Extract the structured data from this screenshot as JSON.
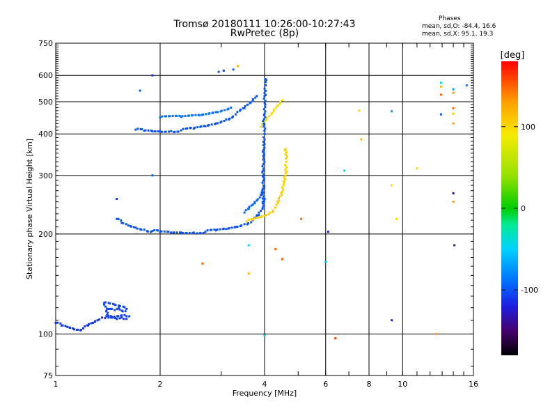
{
  "header": {
    "title": "Tromsø 20180111 10:26:00-10:27:43",
    "subtitle": "RwPretec (8p)",
    "stats_title": "Phases",
    "stats_o": "mean, sd,O: -84.4, 16.6",
    "stats_x": "mean, sd,X:  95.1, 19.3"
  },
  "colorbar": {
    "unit": "[deg]",
    "range": [
      -180,
      180
    ],
    "ticks": [
      {
        "value": 100,
        "label": "100"
      },
      {
        "value": 0,
        "label": "0"
      },
      {
        "value": -100,
        "label": "-100"
      }
    ]
  },
  "chart_data": {
    "type": "scatter",
    "title": "Tromsø 20180111 10:26:00-10:27:43",
    "subtitle": "RwPretec (8p)",
    "xlabel": "Frequency [MHz]",
    "ylabel": "Stationary phase Virtual Height [km]",
    "x_scale": "log",
    "y_scale": "log",
    "xlim": [
      1,
      16
    ],
    "ylim": [
      75,
      750
    ],
    "grid": true,
    "x_ticks": [
      {
        "value": 1,
        "label": "1",
        "grid": false
      },
      {
        "value": 2,
        "label": "2",
        "grid": true
      },
      {
        "value": 4,
        "label": "4",
        "grid": true
      },
      {
        "value": 6,
        "label": "6",
        "grid": true
      },
      {
        "value": 8,
        "label": "8",
        "grid": true
      },
      {
        "value": 10,
        "label": "10",
        "grid": true
      },
      {
        "value": 16,
        "label": "16",
        "grid": false
      }
    ],
    "y_ticks": [
      {
        "value": 75,
        "label": "75",
        "grid": false
      },
      {
        "value": 100,
        "label": "100",
        "grid": true
      },
      {
        "value": 200,
        "label": "200",
        "grid": true
      },
      {
        "value": 300,
        "label": "300",
        "grid": true
      },
      {
        "value": 400,
        "label": "400",
        "grid": true
      },
      {
        "value": 500,
        "label": "500",
        "grid": true
      },
      {
        "value": 600,
        "label": "600",
        "grid": true
      },
      {
        "value": 750,
        "label": "750",
        "grid": false
      }
    ],
    "traces": [
      {
        "id": "E-trace",
        "phase": -110,
        "points": [
          [
            1.0,
            108
          ],
          [
            1.04,
            106
          ],
          [
            1.08,
            105
          ],
          [
            1.12,
            104
          ],
          [
            1.16,
            103
          ],
          [
            1.2,
            104
          ],
          [
            1.24,
            106
          ],
          [
            1.28,
            108
          ],
          [
            1.32,
            110
          ],
          [
            1.36,
            112
          ],
          [
            1.4,
            113
          ],
          [
            1.45,
            112
          ],
          [
            1.5,
            111
          ],
          [
            1.55,
            112
          ],
          [
            1.6,
            111
          ]
        ]
      },
      {
        "id": "E-cluster",
        "phase": -105,
        "points": [
          [
            1.4,
            117
          ],
          [
            1.44,
            119
          ],
          [
            1.48,
            118
          ],
          [
            1.52,
            120
          ],
          [
            1.56,
            117
          ],
          [
            1.6,
            119
          ],
          [
            1.38,
            124
          ],
          [
            1.42,
            112
          ],
          [
            1.58,
            114
          ],
          [
            1.63,
            113
          ]
        ]
      },
      {
        "id": "F1-O",
        "phase": -100,
        "points": [
          [
            1.5,
            222
          ],
          [
            1.55,
            216
          ],
          [
            1.62,
            212
          ],
          [
            1.7,
            209
          ],
          [
            1.8,
            206
          ],
          [
            1.9,
            204
          ],
          [
            2.0,
            203
          ],
          [
            2.15,
            202
          ],
          [
            2.3,
            202
          ],
          [
            2.5,
            202
          ],
          [
            2.7,
            203
          ],
          [
            2.9,
            205
          ],
          [
            3.1,
            207
          ],
          [
            3.3,
            210
          ],
          [
            3.5,
            214
          ],
          [
            3.7,
            220
          ],
          [
            3.85,
            228
          ],
          [
            3.95,
            240
          ],
          [
            4.0,
            255
          ]
        ]
      },
      {
        "id": "F1-upper",
        "phase": -95,
        "points": [
          [
            3.5,
            232
          ],
          [
            3.6,
            238
          ],
          [
            3.7,
            245
          ],
          [
            3.8,
            252
          ],
          [
            3.9,
            262
          ],
          [
            3.95,
            272
          ]
        ]
      },
      {
        "id": "F1-X",
        "phase": 105,
        "points": [
          [
            3.55,
            218
          ],
          [
            3.7,
            221
          ],
          [
            3.85,
            224
          ],
          [
            4.0,
            227
          ],
          [
            4.15,
            232
          ],
          [
            4.3,
            240
          ],
          [
            4.4,
            252
          ],
          [
            4.5,
            268
          ],
          [
            4.55,
            285
          ],
          [
            4.6,
            305
          ],
          [
            4.62,
            330
          ],
          [
            4.6,
            360
          ]
        ]
      },
      {
        "id": "F2-O",
        "phase": -100,
        "points": [
          [
            1.7,
            412
          ],
          [
            1.8,
            409
          ],
          [
            1.9,
            407
          ],
          [
            2.0,
            407
          ],
          [
            2.15,
            408
          ],
          [
            2.3,
            410
          ],
          [
            2.5,
            415
          ],
          [
            2.7,
            422
          ],
          [
            2.9,
            430
          ],
          [
            3.1,
            442
          ],
          [
            3.3,
            458
          ],
          [
            3.5,
            478
          ],
          [
            3.65,
            498
          ],
          [
            3.8,
            520
          ]
        ]
      },
      {
        "id": "F2-X",
        "phase": 95,
        "points": [
          [
            3.9,
            420
          ],
          [
            4.05,
            440
          ],
          [
            4.2,
            462
          ],
          [
            4.35,
            485
          ],
          [
            4.5,
            505
          ]
        ]
      },
      {
        "id": "F2-vertical",
        "phase": -100,
        "points": [
          [
            3.95,
            250
          ],
          [
            3.97,
            280
          ],
          [
            3.96,
            310
          ],
          [
            3.98,
            340
          ],
          [
            3.97,
            370
          ],
          [
            4.0,
            400
          ],
          [
            3.98,
            430
          ],
          [
            4.0,
            460
          ],
          [
            4.02,
            490
          ],
          [
            4.0,
            520
          ],
          [
            4.03,
            560
          ],
          [
            4.02,
            585
          ]
        ]
      },
      {
        "id": "F2-echo",
        "phase": -90,
        "points": [
          [
            2.0,
            448
          ],
          [
            2.3,
            450
          ],
          [
            2.6,
            455
          ],
          [
            2.9,
            465
          ],
          [
            3.2,
            480
          ]
        ]
      }
    ],
    "scatter": [
      {
        "x": 2.95,
        "y": 615,
        "phase": -100
      },
      {
        "x": 3.05,
        "y": 620,
        "phase": -110
      },
      {
        "x": 3.25,
        "y": 625,
        "phase": -95
      },
      {
        "x": 3.35,
        "y": 640,
        "phase": 120
      },
      {
        "x": 1.9,
        "y": 600,
        "phase": -110
      },
      {
        "x": 1.75,
        "y": 540,
        "phase": -100
      },
      {
        "x": 1.9,
        "y": 300,
        "phase": -90
      },
      {
        "x": 1.5,
        "y": 255,
        "phase": -110
      },
      {
        "x": 2.65,
        "y": 163,
        "phase": 150
      },
      {
        "x": 3.6,
        "y": 185,
        "phase": -40
      },
      {
        "x": 3.6,
        "y": 152,
        "phase": 120
      },
      {
        "x": 4.0,
        "y": 99,
        "phase": -40
      },
      {
        "x": 4.3,
        "y": 180,
        "phase": 150
      },
      {
        "x": 4.5,
        "y": 168,
        "phase": 150
      },
      {
        "x": 5.1,
        "y": 222,
        "phase": 150
      },
      {
        "x": 6.0,
        "y": 165,
        "phase": -60
      },
      {
        "x": 6.1,
        "y": 203,
        "phase": -120
      },
      {
        "x": 6.8,
        "y": 310,
        "phase": -40
      },
      {
        "x": 6.4,
        "y": 97,
        "phase": 160
      },
      {
        "x": 7.5,
        "y": 470,
        "phase": 100
      },
      {
        "x": 7.6,
        "y": 385,
        "phase": 120
      },
      {
        "x": 9.3,
        "y": 280,
        "phase": 100
      },
      {
        "x": 9.3,
        "y": 468,
        "phase": -70
      },
      {
        "x": 9.3,
        "y": 110,
        "phase": -120
      },
      {
        "x": 9.6,
        "y": 222,
        "phase": 100
      },
      {
        "x": 11.0,
        "y": 315,
        "phase": 100
      },
      {
        "x": 12.5,
        "y": 100,
        "phase": 130
      },
      {
        "x": 12.9,
        "y": 570,
        "phase": -40
      },
      {
        "x": 12.9,
        "y": 555,
        "phase": 120
      },
      {
        "x": 12.9,
        "y": 525,
        "phase": 150
      },
      {
        "x": 12.9,
        "y": 458,
        "phase": -100
      },
      {
        "x": 14.0,
        "y": 545,
        "phase": -70
      },
      {
        "x": 14.0,
        "y": 532,
        "phase": 130
      },
      {
        "x": 14.0,
        "y": 478,
        "phase": 150
      },
      {
        "x": 14.0,
        "y": 460,
        "phase": 110
      },
      {
        "x": 14.0,
        "y": 430,
        "phase": 130
      },
      {
        "x": 14.0,
        "y": 265,
        "phase": -140
      },
      {
        "x": 14.0,
        "y": 250,
        "phase": 130
      },
      {
        "x": 14.1,
        "y": 185,
        "phase": -130
      },
      {
        "x": 15.3,
        "y": 560,
        "phase": -80
      }
    ]
  }
}
